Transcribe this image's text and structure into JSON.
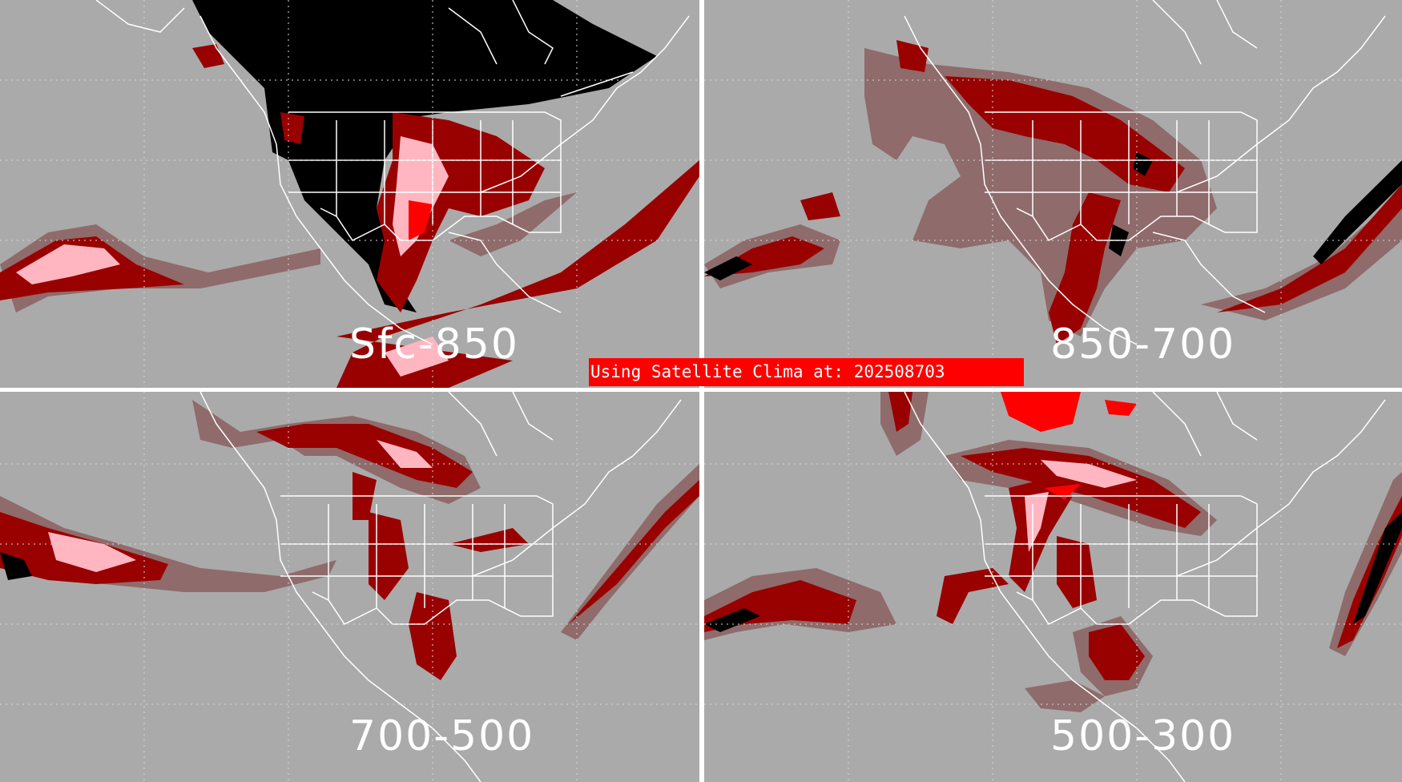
{
  "panels": {
    "top_left": {
      "label": "Sfc-850"
    },
    "top_right": {
      "label": "850-700"
    },
    "bottom_left": {
      "label": "700-500"
    },
    "bottom_right": {
      "label": "500-300"
    }
  },
  "banner": {
    "text": "Using Satellite Clima at: 202508703"
  },
  "colors": {
    "background": "#aaaaaa",
    "low": "#8f6b6b",
    "medium": "#990000",
    "high": "#ff0000",
    "very_high": "#ffb6c1",
    "mask": "#000000",
    "borders": "#ffffff"
  }
}
